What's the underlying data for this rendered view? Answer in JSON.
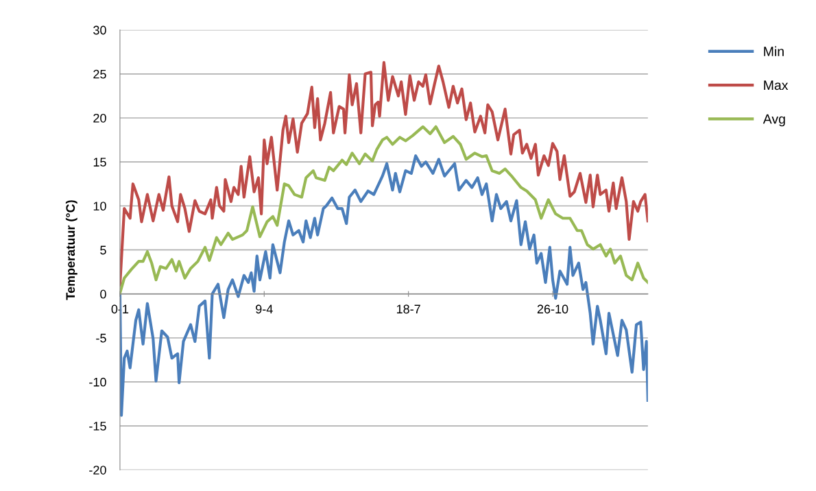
{
  "chart_data": {
    "type": "line",
    "ylabel": "Temperatuur (°C)",
    "categories": [
      "0-1",
      null,
      null,
      null,
      null,
      null,
      null,
      null,
      null,
      null,
      null,
      null,
      null,
      null,
      null,
      null,
      null,
      null,
      null,
      null,
      null,
      null,
      null,
      null,
      null,
      null,
      null,
      null,
      null,
      null,
      null,
      null,
      null,
      null,
      null,
      null,
      null,
      null,
      null,
      null,
      null,
      null,
      null,
      null,
      null,
      null,
      null,
      null,
      null,
      null,
      null,
      null,
      null,
      null,
      null,
      null,
      null,
      null,
      null,
      null,
      null,
      null,
      null,
      null,
      null,
      null,
      null,
      null,
      null,
      null,
      null,
      null,
      null,
      null,
      null,
      null,
      null,
      null,
      null,
      null,
      null,
      null,
      null,
      null,
      null,
      null,
      null,
      null,
      null,
      null,
      null,
      null,
      null,
      null,
      null,
      null,
      null,
      null,
      null,
      null,
      "9-4",
      null,
      null,
      null,
      null,
      null,
      null,
      null,
      null,
      null,
      null,
      null,
      null,
      null,
      null,
      null,
      null,
      null,
      null,
      null,
      null,
      null,
      null,
      null,
      null,
      null,
      null,
      null,
      null,
      null,
      null,
      null,
      null,
      null,
      null,
      null,
      null,
      null,
      null,
      null,
      null,
      null,
      null,
      null,
      null,
      null,
      null,
      null,
      null,
      null,
      null,
      null,
      null,
      null,
      null,
      null,
      null,
      null,
      null,
      null,
      null,
      null,
      null,
      null,
      null,
      null,
      null,
      null,
      null,
      null,
      null,
      null,
      null,
      null,
      null,
      null,
      null,
      null,
      null,
      null,
      null,
      null,
      null,
      null,
      null,
      null,
      null,
      null,
      null,
      null,
      null,
      null,
      null,
      null,
      null,
      null,
      null,
      null,
      null,
      null,
      "18-7",
      null,
      null,
      null,
      null,
      null,
      null,
      null,
      null,
      null,
      null,
      null,
      null,
      null,
      null,
      null,
      null,
      null,
      null,
      null,
      null,
      null,
      null,
      null,
      null,
      null,
      null,
      null,
      null,
      null,
      null,
      null,
      null,
      null,
      null,
      null,
      null,
      null,
      null,
      null,
      null,
      null,
      null,
      null,
      null,
      null,
      null,
      null,
      null,
      null,
      null,
      null,
      null,
      null,
      null,
      null,
      null,
      null,
      null,
      null,
      null,
      null,
      null,
      null,
      null,
      null,
      null,
      null,
      null,
      null,
      null,
      null,
      null,
      null,
      null,
      null,
      null,
      null,
      null,
      null,
      null,
      null,
      null,
      null,
      null,
      null,
      null,
      null,
      null,
      null,
      null,
      null,
      null,
      null,
      null,
      null,
      null,
      null,
      null,
      null,
      "26-10",
      null,
      null,
      null,
      null,
      null,
      null,
      null,
      null,
      null,
      null,
      null,
      null,
      null,
      null,
      null,
      null,
      null,
      null,
      null,
      null,
      null,
      null,
      null,
      null,
      null,
      null,
      null,
      null,
      null,
      null,
      null,
      null,
      null,
      null,
      null,
      null,
      null,
      null,
      null,
      null,
      null,
      null,
      null,
      null,
      null,
      null,
      null,
      null,
      null,
      null,
      null,
      null,
      null,
      null,
      null,
      null,
      null,
      null,
      null,
      null,
      null,
      null,
      null,
      null,
      null,
      null
    ],
    "ylim": [
      -20,
      30
    ],
    "yticks": [
      -20,
      -15,
      -10,
      -5,
      0,
      5,
      10,
      15,
      20,
      25,
      30
    ],
    "grid": "y",
    "legend": "top right",
    "marker": "none",
    "line_style": "solid",
    "series": [
      {
        "name": "Min",
        "color": "#4a7ebb",
        "values": [
          0,
          -13.8,
          null,
          -7.3,
          null,
          -6.5,
          null,
          -8.4,
          null,
          null,
          null,
          -3,
          null,
          -1.8,
          null,
          null,
          -5.7,
          null,
          null,
          -1.1,
          null,
          null,
          null,
          -5.1,
          null,
          -9.9,
          null,
          null,
          null,
          -4.2,
          null,
          null,
          null,
          -4.9,
          null,
          null,
          -7.3,
          null,
          null,
          null,
          -6.8,
          -10.1,
          null,
          null,
          -5.4,
          null,
          null,
          null,
          null,
          -3.5,
          null,
          null,
          -5.4,
          null,
          null,
          -1.4,
          null,
          null,
          null,
          -0.8,
          null,
          null,
          -7.3,
          null,
          0,
          null,
          null,
          null,
          1.1,
          null,
          null,
          null,
          -2.7,
          null,
          null,
          0.5,
          null,
          null,
          1.6,
          null,
          null,
          null,
          -0.3,
          null,
          null,
          null,
          2.1,
          null,
          null,
          1.3,
          null,
          2.4,
          null,
          0.3,
          null,
          4.3,
          null,
          1.6,
          null,
          null,
          null,
          4.8,
          null,
          null,
          1.8,
          null,
          5.6,
          null,
          null,
          null,
          null,
          2.4,
          null,
          null,
          5.9,
          null,
          null,
          8.3,
          null,
          null,
          6.7,
          null,
          null,
          null,
          7.2,
          null,
          null,
          5.9,
          null,
          8.3,
          null,
          null,
          6.4,
          null,
          null,
          8.6,
          null,
          6.7,
          null,
          null,
          null,
          9.7,
          null,
          10,
          null,
          null,
          null,
          10.9,
          null,
          null,
          null,
          9.7,
          null,
          null,
          9.7,
          null,
          null,
          8,
          null,
          11,
          null,
          null,
          null,
          11.8,
          null,
          null,
          null,
          10.5,
          null,
          null,
          null,
          null,
          11.7,
          null,
          null,
          null,
          11.3,
          null,
          null,
          null,
          null,
          null,
          13.4,
          null,
          null,
          14.8,
          null,
          null,
          null,
          11.8,
          null,
          13.7,
          null,
          null,
          11.6,
          null,
          null,
          null,
          14,
          null,
          null,
          null,
          13.7,
          null,
          null,
          15.7,
          null,
          null,
          null,
          14.5,
          null,
          null,
          15,
          null,
          null,
          null,
          null,
          13.7,
          null,
          null,
          null,
          15.3,
          null,
          null,
          null,
          13.4,
          null,
          null,
          14,
          null,
          null,
          null,
          14.8,
          null,
          null,
          11.8,
          null,
          null,
          null,
          null,
          12.9,
          null,
          null,
          null,
          12.1,
          null,
          null,
          null,
          13.2,
          null,
          null,
          11.3,
          null,
          null,
          12.5,
          null,
          null,
          null,
          8.3,
          null,
          null,
          11.3,
          null,
          null,
          9.7,
          null,
          null,
          null,
          10.5,
          null,
          null,
          8.3,
          null,
          null,
          null,
          10.6,
          null,
          null,
          5.6,
          null,
          null,
          8.2,
          null,
          null,
          5.1,
          null,
          null,
          6.7,
          null,
          3.5,
          null,
          null,
          4.6,
          null,
          null,
          1.3,
          null,
          null,
          5.3,
          null,
          1.6,
          null,
          -0.5,
          null,
          null,
          2.6,
          null,
          null,
          null,
          null,
          1.1,
          null,
          5.3,
          null,
          2.1,
          null,
          null,
          null,
          3.5,
          null,
          null,
          0.5,
          null,
          1.3,
          null,
          null,
          -2.2,
          null,
          -5.7,
          null,
          null,
          -1.4,
          null,
          -3,
          null,
          null,
          null,
          -6.8,
          null,
          -2.2,
          null,
          null,
          -4.6,
          null,
          null,
          -7,
          null,
          null,
          -3,
          null,
          null,
          -4.1,
          null,
          null,
          null,
          -8.9,
          null,
          null,
          -3.5,
          null,
          null,
          -3.2,
          null,
          -8.6,
          null,
          -5.4,
          -12.1
        ]
      },
      {
        "name": "Max",
        "color": "#be4b48",
        "values": [
          1,
          null,
          null,
          9.7,
          null,
          null,
          null,
          8.6,
          null,
          12.5,
          null,
          null,
          null,
          10.7,
          null,
          8.2,
          null,
          null,
          null,
          11.3,
          null,
          null,
          null,
          8.3,
          null,
          null,
          null,
          11.3,
          null,
          null,
          9.5,
          null,
          null,
          null,
          13.3,
          null,
          10,
          null,
          null,
          null,
          8.2,
          null,
          11.3,
          null,
          null,
          9.7,
          null,
          null,
          7.1,
          null,
          null,
          null,
          10.6,
          null,
          null,
          9.4,
          null,
          null,
          null,
          9.1,
          null,
          null,
          null,
          10.7,
          8.6,
          null,
          null,
          12.1,
          null,
          10,
          null,
          null,
          9.4,
          13,
          null,
          null,
          null,
          10.5,
          null,
          12.1,
          null,
          null,
          11.3,
          null,
          14.5,
          null,
          11,
          null,
          null,
          null,
          15.6,
          null,
          null,
          11.6,
          null,
          null,
          13.2,
          null,
          9.1,
          null,
          17.5,
          null,
          14.8,
          null,
          null,
          17.8,
          null,
          null,
          null,
          11.8,
          null,
          null,
          null,
          18.6,
          null,
          20.2,
          null,
          17.2,
          null,
          null,
          19.9,
          null,
          null,
          16.1,
          null,
          null,
          19.4,
          null,
          null,
          null,
          20.5,
          null,
          null,
          23.5,
          null,
          18.9,
          null,
          22.2,
          null,
          17.5,
          null,
          null,
          19.4,
          null,
          null,
          null,
          22.9,
          null,
          18.3,
          null,
          null,
          null,
          21.3,
          null,
          null,
          21,
          18.3,
          null,
          null,
          24.9,
          null,
          21.5,
          null,
          null,
          23.9,
          null,
          null,
          18.3,
          null,
          null,
          25,
          null,
          null,
          null,
          25.2,
          19.1,
          null,
          21.5,
          null,
          21.8,
          20.2,
          null,
          null,
          26.3,
          null,
          null,
          22,
          null,
          null,
          24.7,
          null,
          null,
          null,
          22.5,
          null,
          24.1,
          null,
          null,
          20.4,
          null,
          null,
          24.8,
          null,
          null,
          22,
          null,
          null,
          24.1,
          null,
          null,
          23.6,
          null,
          24.9,
          null,
          null,
          21.6,
          null,
          null,
          23.8,
          null,
          null,
          25.9,
          null,
          null,
          24.1,
          null,
          null,
          null,
          21.2,
          null,
          null,
          23.6,
          null,
          null,
          21.7,
          null,
          null,
          23.3,
          null,
          null,
          19.8,
          null,
          null,
          21.7,
          null,
          null,
          18.4,
          null,
          null,
          null,
          20.2,
          null,
          null,
          18.3,
          null,
          21.5,
          null,
          null,
          20.7,
          null,
          null,
          null,
          17.5,
          null,
          null,
          null,
          null,
          21,
          null,
          null,
          null,
          15.9,
          null,
          18.1,
          null,
          null,
          null,
          18.6,
          null,
          16,
          null,
          null,
          17,
          null,
          null,
          15.4,
          null,
          null,
          17,
          null,
          13.5,
          null,
          null,
          null,
          15.7,
          null,
          null,
          14.6,
          null,
          null,
          17.1,
          null,
          null,
          16.2,
          null,
          13,
          null,
          null,
          15.7,
          null,
          null,
          null,
          11.1,
          null,
          null,
          11.6,
          null,
          null,
          null,
          13.7,
          null,
          null,
          null,
          10.4,
          null,
          null,
          13.5,
          null,
          9.9,
          null,
          null,
          13.5,
          null,
          11.3,
          null,
          null,
          null,
          11.8,
          null,
          9.4,
          null,
          null,
          12.6,
          null,
          9.7,
          null,
          null,
          null,
          13.2,
          null,
          null,
          10.5,
          null,
          6.2,
          null,
          null,
          10.5,
          null,
          null,
          9.4,
          null,
          10.5,
          null,
          null,
          11.3,
          null,
          8.3
        ]
      },
      {
        "name": "Avg",
        "color": "#98b954",
        "values": [
          0.1,
          null,
          null,
          1.8,
          null,
          null,
          null,
          null,
          2.8,
          null,
          null,
          null,
          null,
          3.7,
          null,
          null,
          3.7,
          null,
          null,
          4.8,
          null,
          null,
          3.5,
          null,
          null,
          1.6,
          null,
          null,
          3.1,
          null,
          null,
          null,
          2.9,
          null,
          null,
          null,
          3.9,
          null,
          null,
          2.6,
          null,
          3.7,
          null,
          null,
          null,
          1.8,
          null,
          null,
          null,
          2.9,
          null,
          null,
          null,
          null,
          3.7,
          null,
          null,
          null,
          null,
          5.3,
          null,
          null,
          3.8,
          null,
          null,
          null,
          null,
          6.4,
          null,
          null,
          5.6,
          null,
          null,
          null,
          null,
          6.9,
          null,
          null,
          6.2,
          null,
          null,
          null,
          null,
          null,
          null,
          6.7,
          null,
          null,
          7.2,
          null,
          null,
          null,
          9.9,
          null,
          null,
          null,
          null,
          6.5,
          null,
          null,
          null,
          null,
          8.2,
          null,
          null,
          null,
          8.8,
          null,
          null,
          7.8,
          null,
          null,
          null,
          null,
          12.5,
          null,
          null,
          12.3,
          null,
          null,
          null,
          11.3,
          null,
          null,
          null,
          null,
          11,
          null,
          null,
          13.2,
          null,
          null,
          null,
          null,
          14,
          null,
          13.2,
          null,
          null,
          null,
          null,
          null,
          12.9,
          null,
          null,
          14.4,
          null,
          null,
          14,
          null,
          null,
          null,
          null,
          null,
          15.2,
          null,
          null,
          14.7,
          null,
          null,
          null,
          16,
          null,
          null,
          null,
          null,
          14.8,
          null,
          null,
          null,
          15.9,
          null,
          null,
          null,
          null,
          15.1,
          null,
          null,
          16.4,
          null,
          null,
          null,
          17.5,
          null,
          null,
          17.8,
          null,
          null,
          null,
          17,
          null,
          null,
          null,
          null,
          17.8,
          null,
          null,
          null,
          17.4,
          null,
          null,
          null,
          null,
          18,
          null,
          null,
          null,
          null,
          null,
          null,
          19,
          null,
          null,
          null,
          null,
          18.2,
          null,
          null,
          null,
          19,
          null,
          null,
          null,
          null,
          null,
          17.2,
          null,
          null,
          null,
          null,
          null,
          17.9,
          null,
          null,
          null,
          null,
          17,
          null,
          null,
          null,
          15.3,
          null,
          null,
          null,
          null,
          null,
          16,
          null,
          null,
          null,
          null,
          15.6,
          null,
          null,
          15.7,
          null,
          null,
          null,
          14,
          null,
          null,
          null,
          null,
          13.7,
          null,
          null,
          null,
          14.2,
          null,
          null,
          null,
          null,
          13.3,
          null,
          null,
          null,
          null,
          null,
          12.1,
          null,
          null,
          null,
          11.7,
          null,
          null,
          null,
          null,
          null,
          10.7,
          null,
          null,
          null,
          8.6,
          null,
          null,
          null,
          null,
          10.7,
          null,
          null,
          null,
          null,
          9.1,
          null,
          null,
          null,
          null,
          8.6,
          null,
          null,
          null,
          null,
          8.6,
          null,
          null,
          null,
          null,
          7.2,
          null,
          null,
          7.2,
          null,
          null,
          null,
          5.6,
          null,
          null,
          null,
          5.1,
          null,
          null,
          null,
          null,
          5.6,
          null,
          null,
          null,
          4.3,
          null,
          null,
          5.1,
          null,
          null,
          3.5,
          null,
          null,
          null,
          4.3,
          null,
          null,
          null,
          2.1,
          null,
          null,
          null,
          1.6,
          null,
          null,
          null,
          3.5,
          null,
          null,
          null,
          1.8,
          null,
          null,
          1.3
        ]
      }
    ]
  }
}
